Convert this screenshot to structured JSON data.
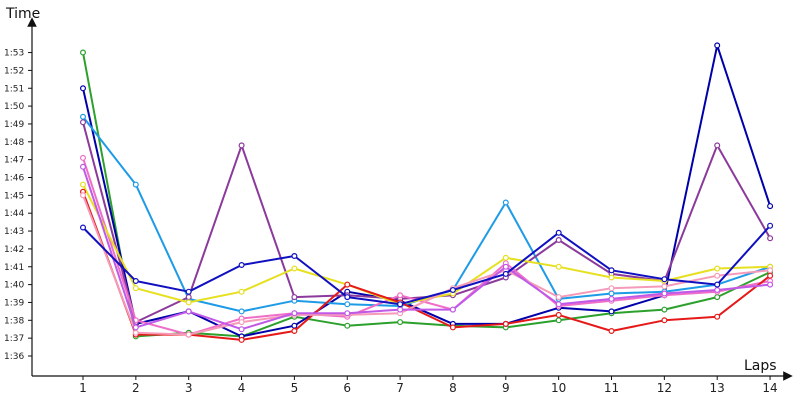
{
  "chart_data": {
    "type": "line",
    "title": "",
    "xlabel": "Laps",
    "ylabel": "Time",
    "x": [
      1,
      2,
      3,
      4,
      5,
      6,
      7,
      8,
      9,
      10,
      11,
      12,
      13,
      14
    ],
    "y_unit": "seconds",
    "ylim": [
      95,
      115
    ],
    "y_ticks": [
      96,
      97,
      98,
      99,
      100,
      101,
      102,
      103,
      104,
      105,
      106,
      107,
      108,
      109,
      110,
      111,
      112,
      113
    ],
    "y_tick_labels": [
      "1:36",
      "1:37",
      "1:38",
      "1:39",
      "1:40",
      "1:41",
      "1:42",
      "1:43",
      "1:44",
      "1:45",
      "1:46",
      "1:47",
      "1:48",
      "1:49",
      "1:50",
      "1:51",
      "1:52",
      "1:53"
    ],
    "x_tick_labels": [
      "1",
      "2",
      "3",
      "4",
      "5",
      "6",
      "7",
      "8",
      "9",
      "10",
      "11",
      "12",
      "13",
      "14"
    ],
    "grid": false,
    "legend": "none",
    "series": [
      {
        "color": "#2ca02c",
        "values": [
          113.0,
          97.1,
          97.3,
          97.1,
          98.2,
          97.7,
          97.9,
          97.7,
          97.6,
          98.0,
          98.4,
          98.6,
          99.3,
          100.7
        ]
      },
      {
        "color": "#0000aa",
        "values": [
          111.0,
          97.8,
          98.5,
          97.1,
          97.7,
          99.6,
          99.1,
          97.8,
          97.8,
          98.7,
          98.5,
          99.4,
          113.4,
          104.4
        ]
      },
      {
        "color": "#1e9be6",
        "values": [
          109.4,
          105.6,
          99.2,
          98.5,
          99.1,
          98.9,
          98.8,
          99.7,
          104.6,
          99.2,
          99.5,
          99.6,
          100.0,
          101.0
        ]
      },
      {
        "color": "#8b3a9b",
        "values": [
          109.1,
          97.9,
          99.3,
          107.8,
          99.3,
          99.4,
          99.2,
          99.4,
          100.4,
          102.5,
          100.6,
          100.2,
          107.8,
          102.6
        ]
      },
      {
        "color": "#f06ec8",
        "values": [
          107.1,
          98.0,
          97.2,
          98.1,
          98.4,
          98.2,
          99.4,
          98.6,
          101.2,
          98.8,
          99.1,
          99.4,
          99.6,
          100.2
        ]
      },
      {
        "color": "#e6e020",
        "values": [
          105.6,
          99.8,
          99.0,
          99.6,
          100.9,
          100.0,
          98.9,
          99.5,
          101.5,
          101.0,
          100.4,
          100.2,
          100.9,
          101.0
        ]
      },
      {
        "color": "#e61919",
        "values": [
          105.2,
          97.2,
          97.2,
          96.9,
          97.4,
          100.0,
          99.0,
          97.6,
          97.8,
          98.3,
          97.4,
          98.0,
          98.2,
          100.5
        ]
      },
      {
        "color": "#f59ab8",
        "values": [
          105.0,
          97.3,
          97.2,
          97.9,
          98.3,
          98.3,
          98.4,
          99.8,
          100.8,
          99.3,
          99.8,
          99.9,
          100.5,
          100.8
        ]
      },
      {
        "color": "#c058e8",
        "values": [
          106.6,
          97.6,
          98.5,
          97.5,
          98.4,
          98.4,
          98.6,
          98.6,
          101.0,
          98.9,
          99.2,
          99.5,
          99.7,
          100.0
        ]
      },
      {
        "color": "#1010c0",
        "values": [
          103.2,
          100.2,
          99.6,
          101.1,
          101.6,
          99.3,
          98.9,
          99.7,
          100.6,
          102.9,
          100.8,
          100.3,
          100.0,
          103.3
        ]
      }
    ]
  }
}
